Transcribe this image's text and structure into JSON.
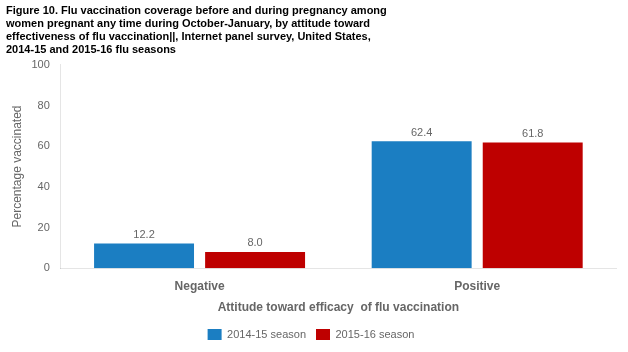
{
  "chart_data": {
    "type": "bar",
    "title": "Figure 10. Flu vaccination coverage before and during pregnancy among\nwomen pregnant any time during October-January, by attitude toward\neffectiveness of flu vaccination||, Internet panel survey, United States,\n2014-15 and 2015-16 flu seasons",
    "categories": [
      "Negative",
      "Positive"
    ],
    "series": [
      {
        "name": "2014-15 season",
        "color": "#1B7EC2",
        "values": [
          12.2,
          62.4
        ],
        "value_labels": [
          "12.2",
          "62.4"
        ]
      },
      {
        "name": "2015-16 season",
        "color": "#BE0000",
        "values": [
          8.0,
          61.8
        ],
        "value_labels": [
          "8.0",
          "61.8"
        ]
      }
    ],
    "xlabel": "Attitude toward efficacy  of flu vaccination",
    "ylabel": "Percentage vaccinated",
    "ylim": [
      0,
      100
    ],
    "yticks": [
      0,
      20,
      40,
      60,
      80,
      100
    ],
    "grid": false,
    "legend": "bottom",
    "data_labels": true
  }
}
